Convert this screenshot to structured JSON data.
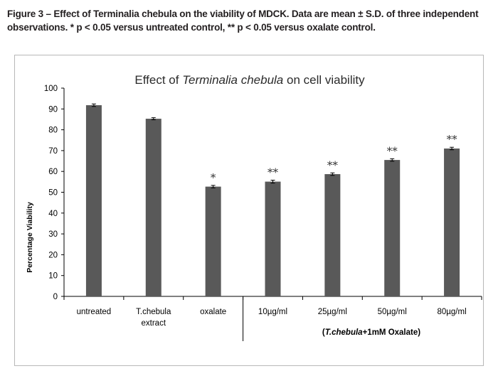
{
  "caption": "Figure 3 – Effect of Terminalia chebula on the viability of MDCK. Data are mean ± S.D. of three independent observations. * p < 0.05 versus untreated control, ** p < 0.05 versus oxalate control.",
  "chart_data": {
    "type": "bar",
    "title": {
      "prefix": "Effect of ",
      "italic": "Terminalia chebula",
      "suffix": " on cell viability"
    },
    "ylabel": "Percentage Viability",
    "xlabel": "",
    "ylim": [
      0,
      100
    ],
    "yticks": [
      0,
      10,
      20,
      30,
      40,
      50,
      60,
      70,
      80,
      90,
      100
    ],
    "categories": [
      [
        "untreated"
      ],
      [
        "T.chebula",
        "extract"
      ],
      [
        "oxalate"
      ],
      [
        "10µg/ml"
      ],
      [
        "25µg/ml"
      ],
      [
        "50µg/ml"
      ],
      [
        "80µg/ml"
      ]
    ],
    "values": [
      91.8,
      85.3,
      52.7,
      55.1,
      58.7,
      65.5,
      71.0
    ],
    "errors": [
      0.6,
      0.5,
      0.6,
      0.7,
      0.6,
      0.6,
      0.6
    ],
    "significance": [
      "",
      "",
      "*",
      "**",
      "**",
      "**",
      "**"
    ],
    "group_label": {
      "open": "(",
      "italic": "T.chebula",
      "rest": "+1mM Oxalate)"
    },
    "bar_color": "#595959",
    "grid": false
  }
}
